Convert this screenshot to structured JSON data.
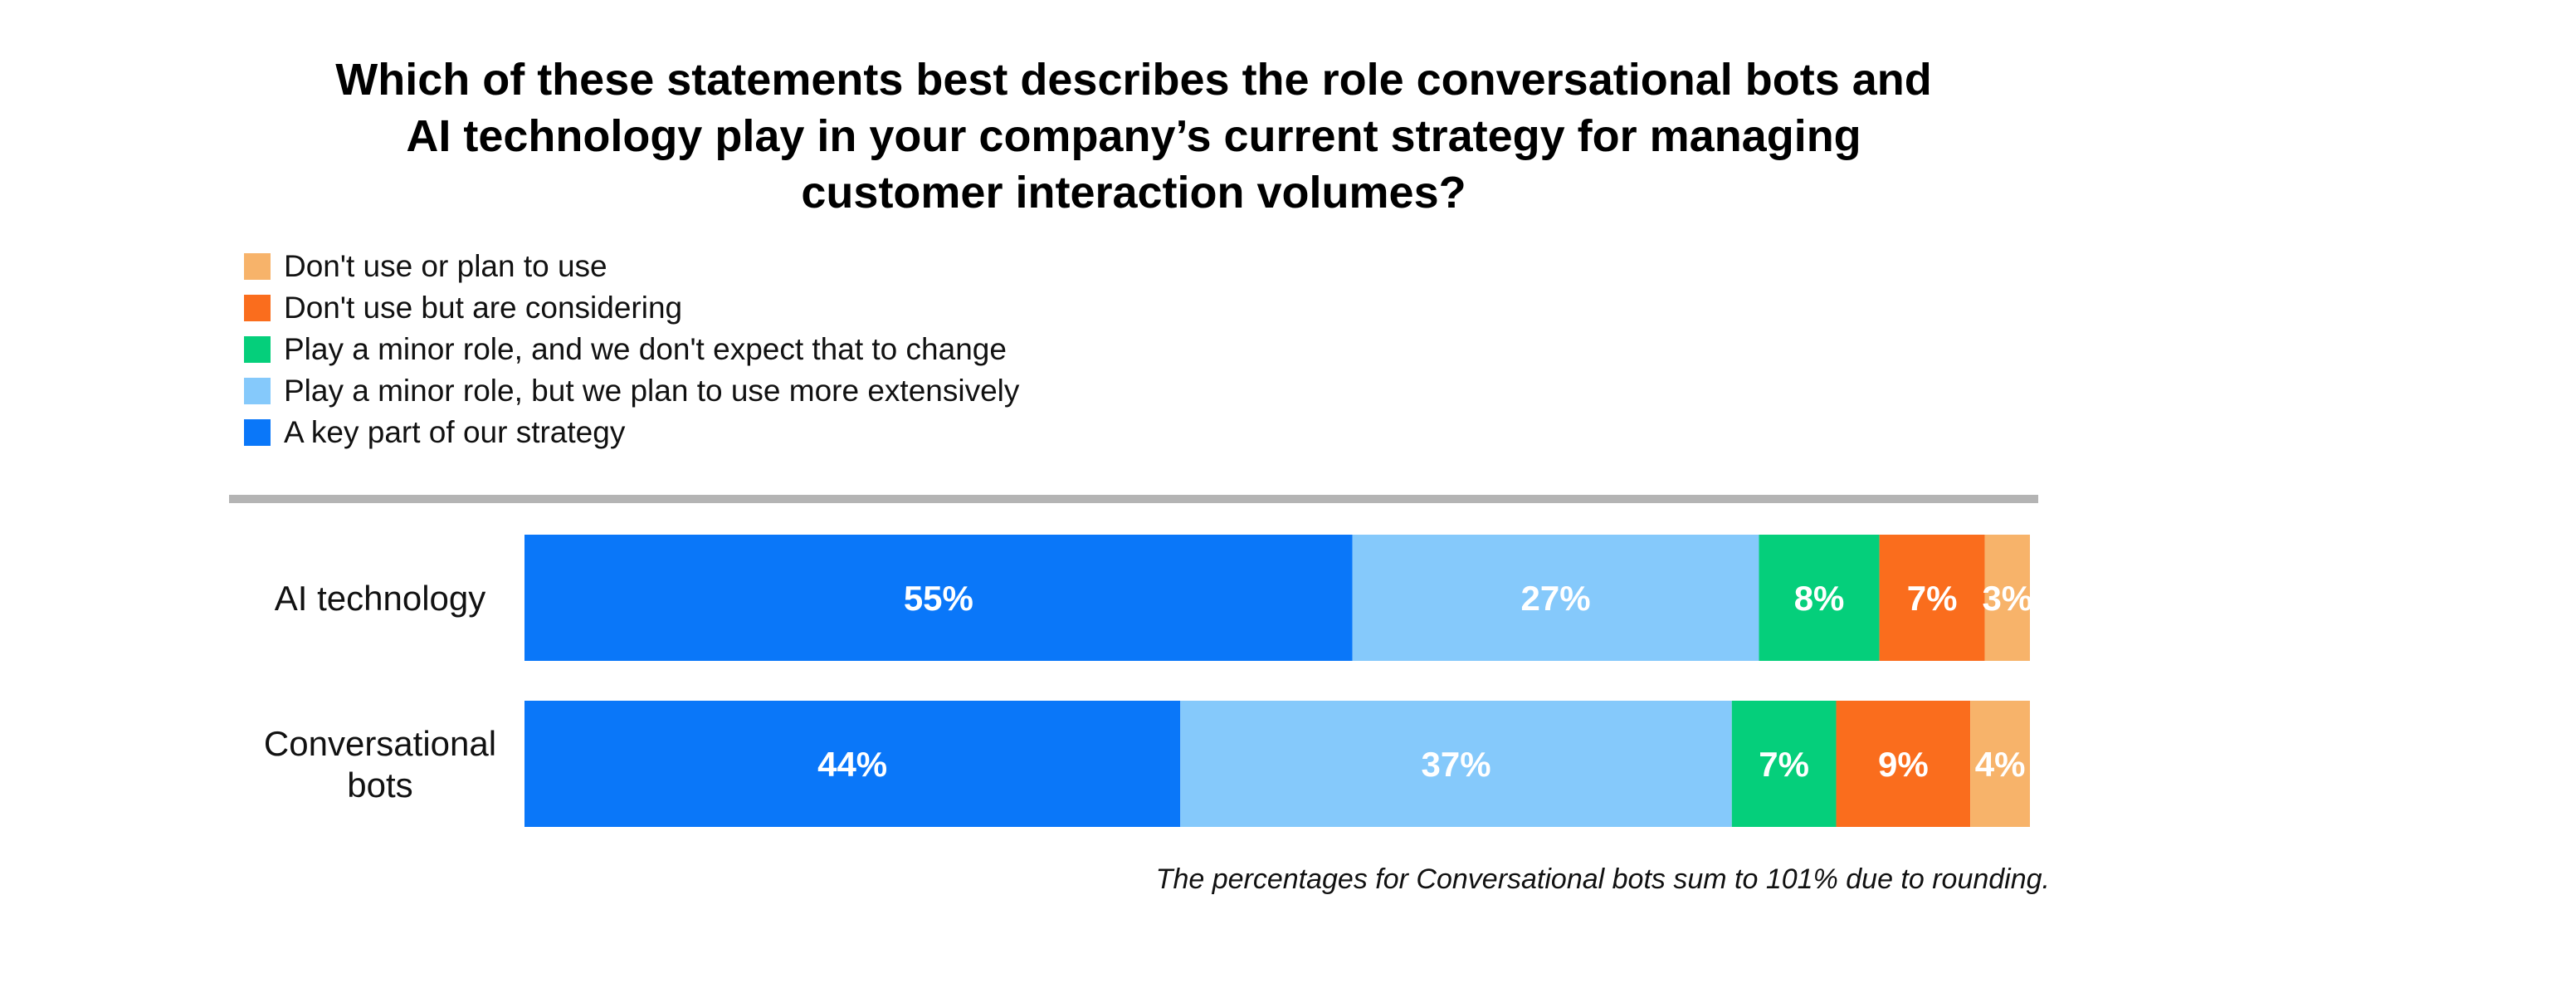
{
  "chart_data": {
    "type": "bar",
    "orientation": "horizontal",
    "stacked": true,
    "title": "Which of these statements best describes the role conversational bots and AI technology play in your company’s current strategy for managing customer interaction volumes?",
    "title_lines": [
      "Which of these statements best describes the role conversational bots and",
      "AI technology play in your company’s current strategy for managing",
      "customer interaction volumes?"
    ],
    "categories": [
      "AI technology",
      "Conversational bots"
    ],
    "category_lines": [
      [
        "AI technology"
      ],
      [
        "Conversational",
        "bots"
      ]
    ],
    "series": [
      {
        "name": "A key part of our strategy",
        "color": "#0a77f9",
        "values": [
          55,
          44
        ]
      },
      {
        "name": "Play a minor role, but we plan to use more extensively",
        "color": "#85c9fb",
        "values": [
          27,
          37
        ]
      },
      {
        "name": "Play a minor role, and we don't expect that to change",
        "color": "#05cf7b",
        "values": [
          8,
          7
        ]
      },
      {
        "name": "Don't use but are considering",
        "color": "#fa6d1d",
        "values": [
          7,
          9
        ]
      },
      {
        "name": "Don't use or plan to use",
        "color": "#f7b36a",
        "values": [
          3,
          4
        ]
      }
    ],
    "legend_order": [
      4,
      3,
      2,
      1,
      0
    ],
    "legend_position": "top-left",
    "value_suffix": "%",
    "xlim": [
      0,
      100
    ],
    "xlabel": "",
    "ylabel": "",
    "grid": false,
    "footnote": "The percentages for Conversational bots sum to 101% due to rounding."
  }
}
